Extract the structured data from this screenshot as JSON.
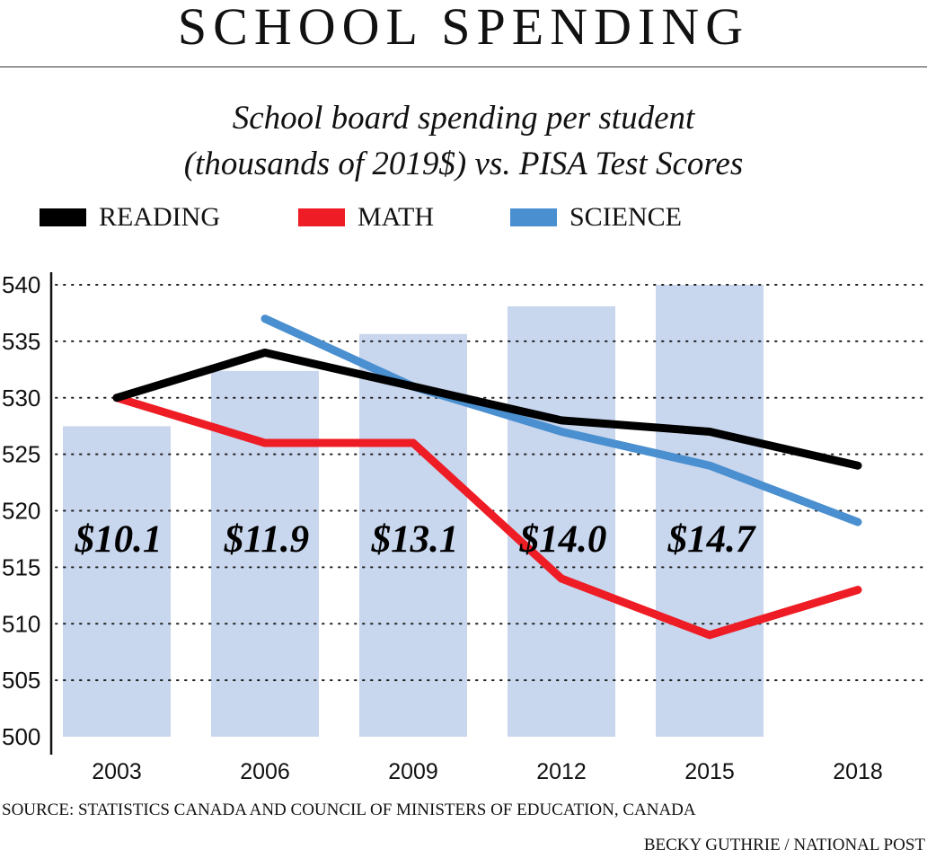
{
  "header": {
    "title": "SCHOOL SPENDING"
  },
  "chart_data": {
    "type": "bar+line",
    "title": "School board spending per student (thousands of 2019$) vs. PISA Test Scores",
    "title_lines": [
      "School board spending per student",
      "(thousands of 2019$) vs. PISA Test Scores"
    ],
    "categories": [
      "2003",
      "2006",
      "2009",
      "2012",
      "2015",
      "2018"
    ],
    "ylim": [
      500,
      540
    ],
    "yticks": [
      "500",
      "505",
      "510",
      "515",
      "520",
      "525",
      "530",
      "535",
      "540"
    ],
    "grid": true,
    "legend_position": "top",
    "bars": {
      "values": [
        10.1,
        11.9,
        13.1,
        14.0,
        14.7,
        null
      ],
      "labels": [
        "$10.1",
        "$11.9",
        "$13.1",
        "$14.0",
        "$14.7",
        ""
      ],
      "color": "#c8d6ee"
    },
    "series": [
      {
        "name": "READING",
        "color": "#000000",
        "values": [
          530,
          534,
          531,
          528,
          527,
          524
        ]
      },
      {
        "name": "MATH",
        "color": "#ee1c24",
        "values": [
          530,
          526,
          526,
          514,
          509,
          513
        ]
      },
      {
        "name": "SCIENCE",
        "color": "#4a8fcf",
        "values": [
          null,
          537,
          531,
          527,
          524,
          519
        ]
      }
    ]
  },
  "footer": {
    "source": "SOURCE: STATISTICS CANADA AND COUNCIL OF MINISTERS OF EDUCATION, CANADA",
    "credit": "BECKY GUTHRIE  / NATIONAL POST"
  }
}
